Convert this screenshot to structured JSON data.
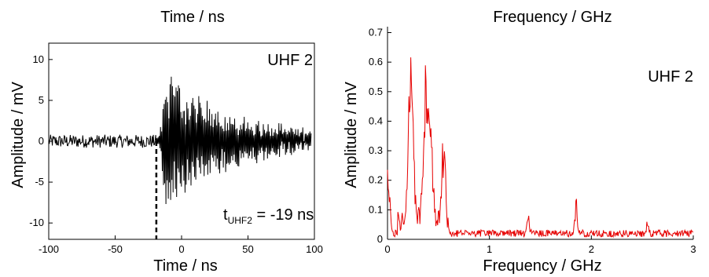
{
  "chart_data": [
    {
      "type": "line",
      "title": "Time / ns",
      "xlabel": "Time / ns",
      "ylabel": "Amplitude / mV",
      "xlim": [
        -100,
        100
      ],
      "ylim": [
        -12,
        12
      ],
      "x_ticks": [
        -100,
        -50,
        0,
        50,
        100
      ],
      "y_ticks": [
        -10,
        -5,
        0,
        5,
        10
      ],
      "tag": "UHF 2",
      "annotation": {
        "prefix": "t",
        "subscript": "UHF2",
        "text": " = -19 ns",
        "x": -19
      },
      "grid": false,
      "series": [
        {
          "color": "#000000",
          "noise_amplitude": 0.8,
          "pulse_start": -17,
          "pulse_peak": 9,
          "pulse_trough": -10,
          "signal_end": 98
        }
      ]
    },
    {
      "type": "line",
      "title": "Frequency / GHz",
      "xlabel": "Frequency / GHz",
      "ylabel": "Amplitude / mV",
      "xlim": [
        0,
        3
      ],
      "ylim": [
        0,
        0.72
      ],
      "x_ticks": [
        0,
        1,
        2,
        3
      ],
      "y_ticks": [
        0,
        0.1,
        0.2,
        0.3,
        0.4,
        0.5,
        0.6,
        0.7
      ],
      "tag": "UHF 2",
      "grid": false,
      "series": [
        {
          "color": "#e60000",
          "peaks": [
            {
              "x": 0.0,
              "y": 0.24
            },
            {
              "x": 0.23,
              "y": 0.69
            },
            {
              "x": 0.37,
              "y": 0.51
            },
            {
              "x": 0.42,
              "y": 0.34
            },
            {
              "x": 0.55,
              "y": 0.26
            },
            {
              "x": 1.38,
              "y": 0.08
            },
            {
              "x": 1.85,
              "y": 0.12
            },
            {
              "x": 2.55,
              "y": 0.04
            }
          ],
          "baseline": 0.02
        }
      ]
    }
  ]
}
